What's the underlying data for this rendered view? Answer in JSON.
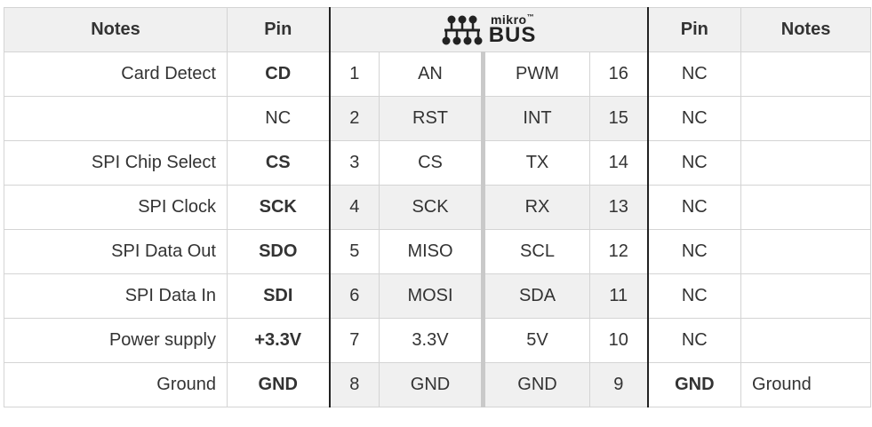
{
  "header": {
    "notes_left": "Notes",
    "pin_left": "Pin",
    "logo_top": "mikro",
    "logo_tm": "™",
    "logo_bottom": "BUS",
    "pin_right": "Pin",
    "notes_right": "Notes"
  },
  "rows": [
    {
      "note_l": "Card Detect",
      "pin_l": "CD",
      "pin_l_bold": true,
      "num_l": "1",
      "sig_l": "AN",
      "sig_r": "PWM",
      "num_r": "16",
      "pin_r": "NC",
      "pin_r_bold": false,
      "note_r": ""
    },
    {
      "note_l": "",
      "pin_l": "NC",
      "pin_l_bold": false,
      "num_l": "2",
      "sig_l": "RST",
      "sig_r": "INT",
      "num_r": "15",
      "pin_r": "NC",
      "pin_r_bold": false,
      "note_r": ""
    },
    {
      "note_l": "SPI Chip Select",
      "pin_l": "CS",
      "pin_l_bold": true,
      "num_l": "3",
      "sig_l": "CS",
      "sig_r": "TX",
      "num_r": "14",
      "pin_r": "NC",
      "pin_r_bold": false,
      "note_r": ""
    },
    {
      "note_l": "SPI Clock",
      "pin_l": "SCK",
      "pin_l_bold": true,
      "num_l": "4",
      "sig_l": "SCK",
      "sig_r": "RX",
      "num_r": "13",
      "pin_r": "NC",
      "pin_r_bold": false,
      "note_r": ""
    },
    {
      "note_l": "SPI Data Out",
      "pin_l": "SDO",
      "pin_l_bold": true,
      "num_l": "5",
      "sig_l": "MISO",
      "sig_r": "SCL",
      "num_r": "12",
      "pin_r": "NC",
      "pin_r_bold": false,
      "note_r": ""
    },
    {
      "note_l": "SPI Data In",
      "pin_l": "SDI",
      "pin_l_bold": true,
      "num_l": "6",
      "sig_l": "MOSI",
      "sig_r": "SDA",
      "num_r": "11",
      "pin_r": "NC",
      "pin_r_bold": false,
      "note_r": ""
    },
    {
      "note_l": "Power supply",
      "pin_l": "+3.3V",
      "pin_l_bold": true,
      "num_l": "7",
      "sig_l": "3.3V",
      "sig_r": "5V",
      "num_r": "10",
      "pin_r": "NC",
      "pin_r_bold": false,
      "note_r": ""
    },
    {
      "note_l": "Ground",
      "pin_l": "GND",
      "pin_l_bold": true,
      "num_l": "8",
      "sig_l": "GND",
      "sig_r": "GND",
      "num_r": "9",
      "pin_r": "GND",
      "pin_r_bold": true,
      "note_r": "Ground"
    }
  ]
}
